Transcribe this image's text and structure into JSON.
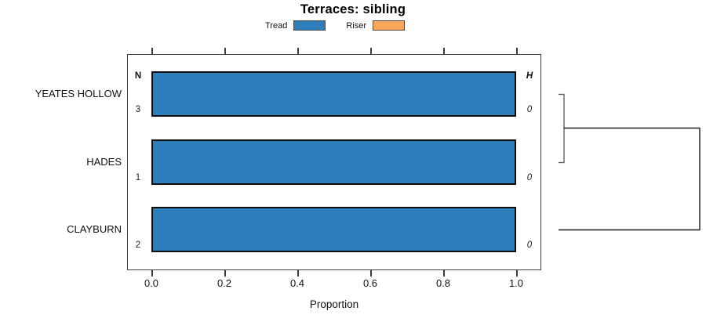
{
  "title": "Terraces: sibling",
  "legend": [
    {
      "label": "Tread",
      "color": "#2E7EBB"
    },
    {
      "label": "Riser",
      "color": "#F9A65A"
    }
  ],
  "chart_data": {
    "type": "bar",
    "orientation": "horizontal",
    "title": "Terraces: sibling",
    "xlabel": "Proportion",
    "xlim": [
      0,
      1
    ],
    "x_tick_labels": [
      "0.0",
      "0.2",
      "0.4",
      "0.6",
      "0.8",
      "1.0"
    ],
    "x_tick_values": [
      0.0,
      0.2,
      0.4,
      0.6,
      0.8,
      1.0
    ],
    "grid": false,
    "legend_position": "top",
    "categories": [
      "YEATES HOLLOW",
      "HADES",
      "CLAYBURN"
    ],
    "series": [
      {
        "name": "Tread",
        "color": "#2E7EBB",
        "values": [
          1.0,
          1.0,
          1.0
        ]
      },
      {
        "name": "Riser",
        "color": "#F9A65A",
        "values": [
          0.0,
          0.0,
          0.0
        ]
      }
    ],
    "left_column": {
      "header": "N",
      "values": [
        "3",
        "1",
        "2"
      ]
    },
    "right_column": {
      "header": "H",
      "values": [
        "0",
        "0",
        "0"
      ],
      "style": "italic"
    },
    "dendrogram": {
      "first_join": [
        "YEATES HOLLOW",
        "HADES"
      ],
      "second_join": [
        "first_join_cluster",
        "CLAYBURN"
      ]
    }
  }
}
